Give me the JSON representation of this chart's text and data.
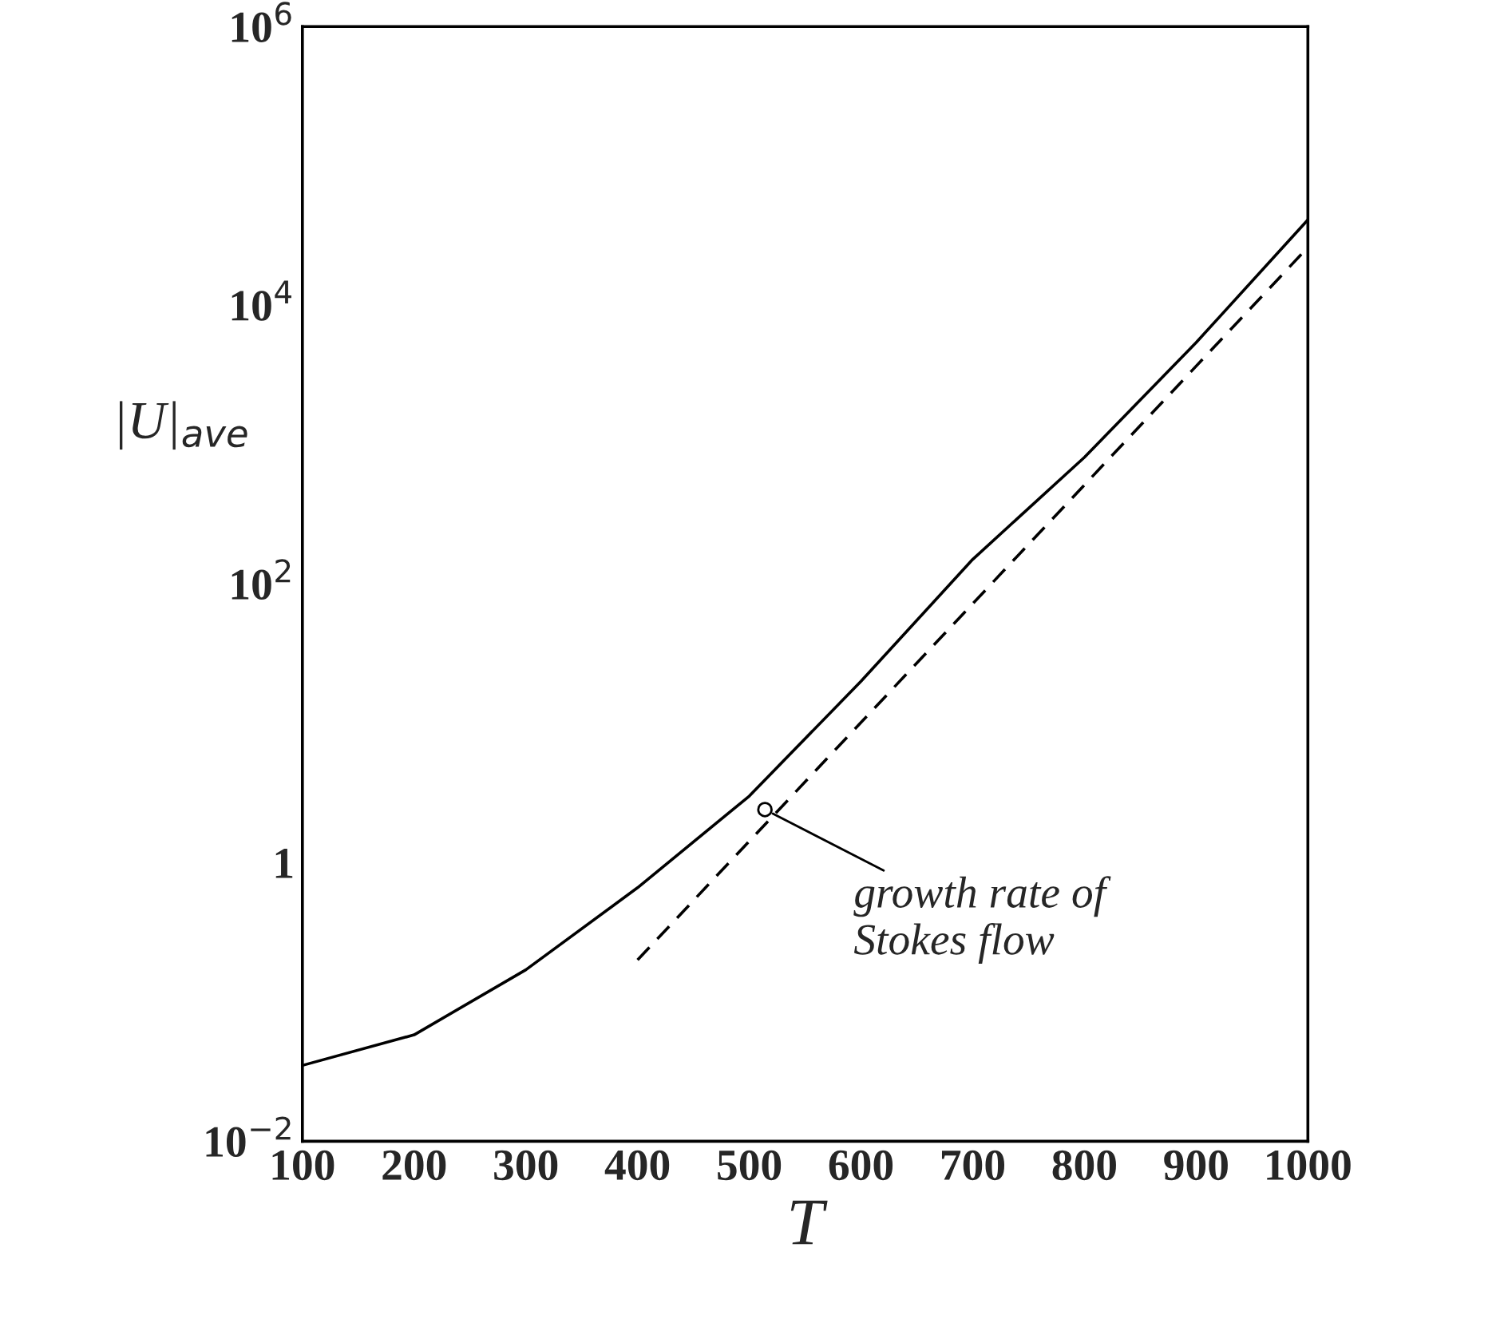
{
  "chart_data": {
    "type": "line",
    "xlabel": "T",
    "ylabel": "|U|$_{ave}$",
    "log": "y",
    "xlim": [
      100,
      1000
    ],
    "ylim": [
      0.01,
      1000000
    ],
    "xticks": [
      100,
      200,
      300,
      400,
      500,
      600,
      700,
      800,
      900,
      1000
    ],
    "yticks": [
      {
        "value": 0.01,
        "label": "10$^{−2}$"
      },
      1,
      {
        "value": 100,
        "label": "10$^{2}$"
      },
      {
        "value": 10000,
        "label": "10$^{4}$"
      },
      {
        "value": 1000000,
        "label": "10$^{6}$"
      }
    ],
    "grid": false,
    "legend": false,
    "series": [
      {
        "color": "#000000",
        "line_style": "solid",
        "x": [
          100,
          200,
          300,
          400,
          500,
          600,
          700,
          800,
          900,
          1000
        ],
        "values": [
          0.035,
          0.058,
          0.17,
          0.66,
          3.0,
          20,
          150,
          810,
          5400,
          41000
        ]
      },
      {
        "color": "#000000",
        "line_style": "dashed",
        "x": [
          400,
          1000
        ],
        "values": [
          0.2,
          26000
        ]
      }
    ],
    "annotations": [
      {
        "text": "growth rate of\nStokes flow",
        "x": 514,
        "y": 2.4
      }
    ]
  }
}
